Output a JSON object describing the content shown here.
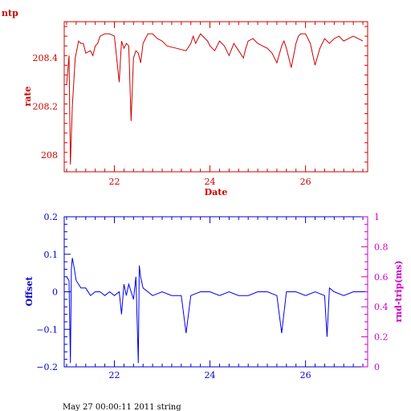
{
  "colors": {
    "top": "#cc0000",
    "bottom": "#0000ee",
    "right_axis": "#cc00cc"
  },
  "footer_text": "May 27 00:00:11 2011 string",
  "chart_data": [
    {
      "type": "line",
      "title": "ntp",
      "xlabel": "Date",
      "ylabel": "rate",
      "xlim": [
        20.95,
        27.3
      ],
      "ylim": [
        207.93,
        208.55
      ],
      "xticks": [
        {
          "v": 22,
          "label": "22"
        },
        {
          "v": 24,
          "label": "24"
        },
        {
          "v": 26,
          "label": "26"
        }
      ],
      "yticks": [
        {
          "v": 208,
          "label": "208"
        },
        {
          "v": 208.2,
          "label": "208.2"
        },
        {
          "v": 208.4,
          "label": "208.4"
        }
      ],
      "x": [
        21.0,
        21.05,
        21.08,
        21.12,
        21.18,
        21.25,
        21.3,
        21.35,
        21.4,
        21.5,
        21.55,
        21.6,
        21.65,
        21.7,
        21.8,
        21.9,
        22.0,
        22.1,
        22.15,
        22.2,
        22.25,
        22.3,
        22.35,
        22.4,
        22.45,
        22.5,
        22.55,
        22.6,
        22.7,
        22.8,
        22.9,
        23.0,
        23.1,
        23.3,
        23.5,
        23.6,
        23.65,
        23.7,
        23.8,
        23.9,
        23.95,
        24.0,
        24.1,
        24.2,
        24.3,
        24.4,
        24.5,
        24.6,
        24.7,
        24.75,
        24.8,
        24.9,
        25.0,
        25.1,
        25.2,
        25.3,
        25.4,
        25.5,
        25.55,
        25.6,
        25.7,
        25.8,
        25.85,
        25.9,
        26.0,
        26.1,
        26.2,
        26.3,
        26.4,
        26.45,
        26.5,
        26.6,
        26.7,
        26.8,
        26.9,
        27.0,
        27.1,
        27.2
      ],
      "y": [
        208.29,
        208.41,
        207.96,
        208.2,
        208.4,
        208.47,
        208.46,
        208.46,
        208.42,
        208.43,
        208.41,
        208.45,
        208.46,
        208.49,
        208.5,
        208.5,
        208.49,
        208.3,
        208.47,
        208.44,
        208.46,
        208.45,
        208.14,
        208.4,
        208.43,
        208.42,
        208.38,
        208.46,
        208.5,
        208.5,
        208.48,
        208.47,
        208.45,
        208.44,
        208.43,
        208.46,
        208.49,
        208.46,
        208.5,
        208.48,
        208.47,
        208.45,
        208.43,
        208.47,
        208.45,
        208.41,
        208.46,
        208.43,
        208.4,
        208.44,
        208.47,
        208.48,
        208.46,
        208.45,
        208.44,
        208.42,
        208.38,
        208.45,
        208.47,
        208.44,
        208.36,
        208.46,
        208.49,
        208.5,
        208.5,
        208.46,
        208.37,
        208.44,
        208.48,
        208.47,
        208.46,
        208.48,
        208.49,
        208.47,
        208.48,
        208.49,
        208.48,
        208.47
      ]
    },
    {
      "type": "line",
      "xlabel": "",
      "ylabel": "Offset",
      "ylabel_right": "rnd-trip(ms)",
      "xlim": [
        20.95,
        27.3
      ],
      "ylim": [
        -0.2,
        0.2
      ],
      "ylim_right": [
        0,
        1
      ],
      "xticks": [
        {
          "v": 22,
          "label": "22"
        },
        {
          "v": 24,
          "label": "24"
        },
        {
          "v": 26,
          "label": "26"
        }
      ],
      "yticks": [
        {
          "v": -0.2,
          "label": "−0.2"
        },
        {
          "v": -0.1,
          "label": "−0.1"
        },
        {
          "v": 0,
          "label": "0"
        },
        {
          "v": 0.1,
          "label": "0.1"
        },
        {
          "v": 0.2,
          "label": "0.2"
        }
      ],
      "yticks_right": [
        {
          "v": 0,
          "label": "0"
        },
        {
          "v": 0.2,
          "label": "0.2"
        },
        {
          "v": 0.4,
          "label": "0.4"
        },
        {
          "v": 0.6,
          "label": "0.6"
        },
        {
          "v": 0.8,
          "label": "0.8"
        },
        {
          "v": 1,
          "label": "1"
        }
      ],
      "x": [
        21.0,
        21.05,
        21.08,
        21.1,
        21.12,
        21.15,
        21.2,
        21.25,
        21.3,
        21.4,
        21.5,
        21.6,
        21.7,
        21.8,
        21.9,
        22.0,
        22.1,
        22.15,
        22.2,
        22.25,
        22.3,
        22.4,
        22.45,
        22.5,
        22.52,
        22.55,
        22.6,
        22.7,
        22.8,
        23.0,
        23.2,
        23.4,
        23.5,
        23.6,
        23.8,
        24.0,
        24.2,
        24.4,
        24.6,
        24.8,
        25.0,
        25.2,
        25.4,
        25.5,
        25.6,
        25.8,
        26.0,
        26.2,
        26.4,
        26.45,
        26.5,
        26.6,
        26.8,
        27.0,
        27.2,
        27.25
      ],
      "y": [
        0.04,
        0.03,
        -0.19,
        0.06,
        0.09,
        0.07,
        0.03,
        0.02,
        0.01,
        0.01,
        -0.01,
        0.0,
        0.0,
        -0.01,
        0.0,
        -0.01,
        0.0,
        -0.06,
        0.02,
        -0.01,
        0.02,
        -0.02,
        0.04,
        -0.19,
        0.07,
        0.04,
        0.01,
        0.0,
        -0.01,
        0.0,
        -0.01,
        -0.01,
        -0.11,
        -0.01,
        0.0,
        0.0,
        -0.01,
        0.0,
        -0.01,
        -0.01,
        0.0,
        0.0,
        -0.01,
        -0.11,
        0.0,
        0.0,
        -0.01,
        0.0,
        -0.01,
        -0.12,
        0.01,
        0.0,
        -0.01,
        0.0,
        0.0,
        0.0
      ]
    }
  ]
}
